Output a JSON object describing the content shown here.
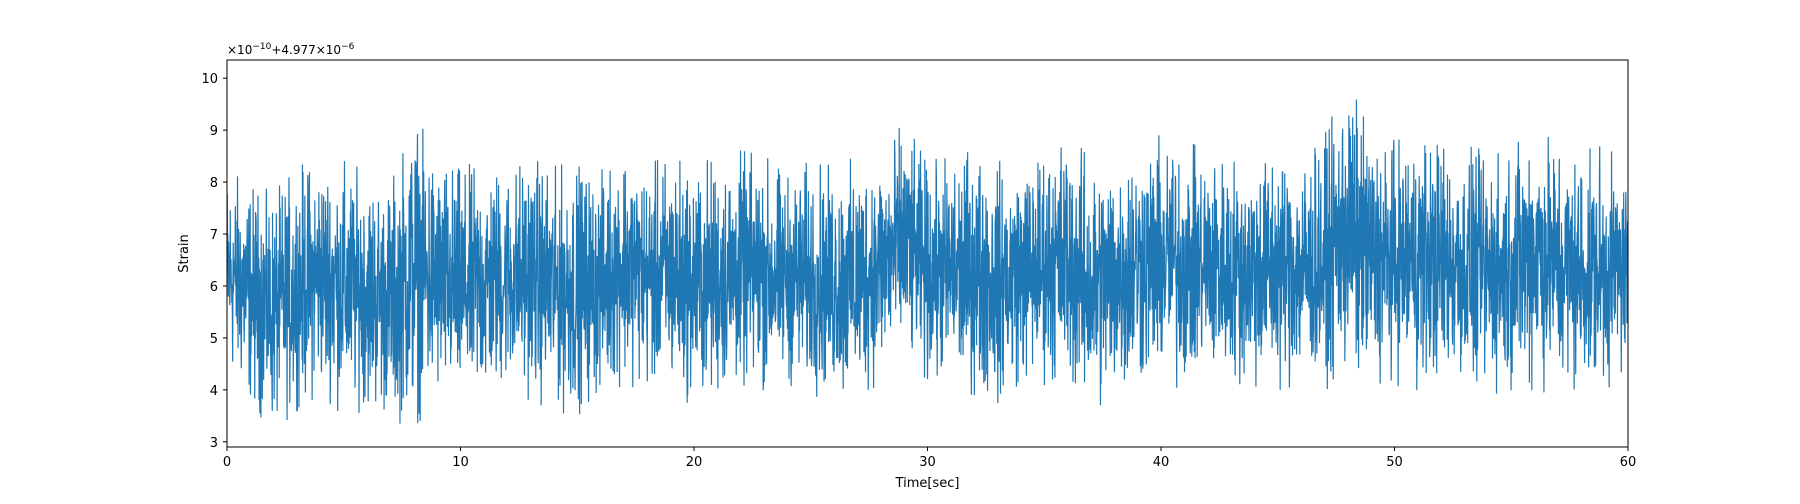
{
  "chart_data": {
    "type": "line",
    "title": "",
    "xlabel": "Time[sec]",
    "ylabel": "Strain",
    "offset_text": {
      "factor_base": "×10",
      "factor_exp": "−10",
      "offset_base": "+4.977×10",
      "offset_exp": "−6"
    },
    "xlim": [
      0,
      60
    ],
    "ylim": [
      2.9,
      10.35
    ],
    "x_ticks": [
      0,
      10,
      20,
      30,
      40,
      50,
      60
    ],
    "x_tick_labels": [
      "0",
      "10",
      "20",
      "30",
      "40",
      "50",
      "60"
    ],
    "y_ticks": [
      3,
      4,
      5,
      6,
      7,
      8,
      9,
      10
    ],
    "y_tick_labels": [
      "3",
      "4",
      "5",
      "6",
      "7",
      "8",
      "9",
      "10"
    ],
    "grid": false,
    "legend": "none",
    "series_color": "#1f77b4",
    "series": [
      {
        "x": [
          0,
          1,
          2,
          3,
          4,
          5,
          6,
          7,
          8,
          9,
          10,
          11,
          12,
          13,
          14,
          15,
          16,
          17,
          18,
          19,
          20,
          21,
          22,
          23,
          24,
          25,
          26,
          27,
          28,
          29,
          30,
          31,
          32,
          33,
          34,
          35,
          36,
          37,
          38,
          39,
          40,
          41,
          42,
          43,
          44,
          45,
          46,
          47,
          48,
          49,
          50,
          51,
          52,
          53,
          54,
          55,
          56,
          57,
          58,
          59,
          60
        ],
        "upper": [
          8.3,
          8.0,
          7.8,
          8.3,
          8.5,
          8.4,
          8.2,
          8.0,
          9.35,
          8.5,
          8.3,
          8.4,
          8.3,
          8.6,
          8.3,
          8.4,
          8.2,
          8.8,
          8.3,
          8.6,
          8.4,
          8.5,
          8.6,
          8.5,
          8.2,
          8.4,
          8.3,
          8.5,
          8.6,
          9.15,
          8.4,
          8.5,
          8.7,
          8.4,
          8.4,
          8.7,
          9.0,
          8.4,
          8.6,
          8.8,
          8.9,
          8.8,
          8.6,
          8.5,
          8.6,
          8.7,
          8.6,
          8.9,
          10.0,
          9.0,
          8.8,
          9.1,
          8.9,
          8.7,
          8.6,
          8.7,
          9.4,
          8.8,
          8.6,
          8.7,
          8.3
        ],
        "lower": [
          4.3,
          3.7,
          3.2,
          3.6,
          3.9,
          3.5,
          3.6,
          3.4,
          3.3,
          3.7,
          3.6,
          3.7,
          4.0,
          3.8,
          3.6,
          3.5,
          3.9,
          4.1,
          4.0,
          3.9,
          3.7,
          3.8,
          4.0,
          4.0,
          4.1,
          3.9,
          3.8,
          3.7,
          4.2,
          4.5,
          4.1,
          4.0,
          3.9,
          3.7,
          4.1,
          4.1,
          4.0,
          3.5,
          3.8,
          4.0,
          4.1,
          4.0,
          4.2,
          4.1,
          4.0,
          4.0,
          4.1,
          4.0,
          4.2,
          4.0,
          4.1,
          4.0,
          4.1,
          4.0,
          3.9,
          4.0,
          4.0,
          3.9,
          3.9,
          4.0,
          4.3
        ]
      }
    ]
  }
}
